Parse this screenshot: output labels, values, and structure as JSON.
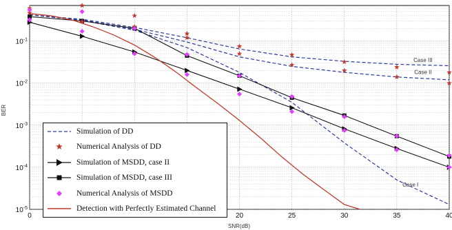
{
  "chart_data": {
    "type": "line",
    "xlabel": "SNR(dB)",
    "ylabel": "BER",
    "x_ticks": [
      "0",
      "5",
      "10",
      "15",
      "20",
      "25",
      "30",
      "35",
      "40"
    ],
    "y_ticks": [
      "10^-5",
      "10^-4",
      "10^-3",
      "10^-2",
      "10^-1"
    ],
    "xlim": [
      0,
      40
    ],
    "ylim": [
      1e-05,
      0.7
    ],
    "yscale": "log",
    "grid": true,
    "legend_position": "lower-left",
    "annotations": [
      {
        "text": "Case III",
        "x": 37.5,
        "y": 0.032
      },
      {
        "text": "Case II",
        "x": 37.5,
        "y": 0.0165
      },
      {
        "text": "Case I",
        "x": 36.3,
        "y": 3.5e-05
      }
    ],
    "series": [
      {
        "name": "Simulation of DD",
        "kind": "dashed-line",
        "color": "#2b3a9c",
        "segments": [
          {
            "x": [
              0,
              5,
              10,
              15,
              20,
              25,
              30,
              35,
              40
            ],
            "y": [
              0.42,
              0.33,
              0.21,
              0.12,
              0.065,
              0.042,
              0.033,
              0.028,
              0.026
            ]
          },
          {
            "x": [
              0,
              5,
              10,
              15,
              20,
              25,
              30,
              35,
              40
            ],
            "y": [
              0.42,
              0.32,
              0.19,
              0.095,
              0.042,
              0.025,
              0.018,
              0.014,
              0.012
            ]
          },
          {
            "x": [
              0,
              5,
              10,
              15,
              20,
              25,
              30,
              35,
              40
            ],
            "y": [
              0.42,
              0.31,
              0.18,
              0.07,
              0.018,
              0.0035,
              0.00038,
              5e-05,
              1.3e-05
            ]
          }
        ]
      },
      {
        "name": "Numerical Analysis of DD",
        "kind": "star-markers",
        "color": "#c0392b",
        "x": [
          0,
          5,
          10,
          15,
          20,
          25,
          30,
          35,
          40,
          0,
          5,
          10,
          15,
          20,
          25,
          30,
          35,
          40
        ],
        "y": [
          0.6,
          0.7,
          0.4,
          0.15,
          0.075,
          0.047,
          0.032,
          0.024,
          0.018,
          0.47,
          0.29,
          0.22,
          0.12,
          0.05,
          0.027,
          0.02,
          0.014,
          0.01
        ]
      },
      {
        "name": "Simulation of MSDD, case II",
        "kind": "line-triangle",
        "color": "#111111",
        "x": [
          0,
          5,
          10,
          15,
          20,
          25,
          30,
          35,
          40
        ],
        "y": [
          0.28,
          0.13,
          0.055,
          0.02,
          0.0072,
          0.0026,
          0.00082,
          0.00028,
          0.0001
        ]
      },
      {
        "name": "Simulation of MSDD, case III",
        "kind": "line-square",
        "color": "#111111",
        "x": [
          0,
          5,
          10,
          15,
          20,
          25,
          30,
          35,
          40
        ],
        "y": [
          0.38,
          0.3,
          0.2,
          0.045,
          0.015,
          0.0045,
          0.0017,
          0.00055,
          0.00018
        ]
      },
      {
        "name": "Numerical Analysis of MSDD",
        "kind": "diamond-markers",
        "color": "#e040fb",
        "x": [
          0,
          5,
          10,
          15,
          20,
          25,
          30,
          35,
          40,
          0,
          5,
          10,
          15,
          20,
          25,
          30,
          35,
          40
        ],
        "y": [
          0.55,
          0.5,
          0.2,
          0.048,
          0.015,
          0.0048,
          0.0016,
          0.00055,
          0.00019,
          0.32,
          0.17,
          0.05,
          0.016,
          0.0055,
          0.0021,
          0.00075,
          0.00026,
          0.0001
        ]
      },
      {
        "name": "Detection with Perfectly Estimated Channel",
        "kind": "solid-line",
        "color": "#c0392b",
        "x": [
          0,
          2,
          4,
          6,
          8,
          10,
          12,
          14,
          16,
          18,
          20,
          22,
          24,
          26,
          28,
          30,
          31.5
        ],
        "y": [
          0.45,
          0.4,
          0.32,
          0.22,
          0.14,
          0.08,
          0.04,
          0.018,
          0.0075,
          0.0032,
          0.0013,
          0.0005,
          0.00018,
          7e-05,
          3e-05,
          1.3e-05,
          1e-05
        ]
      }
    ]
  }
}
